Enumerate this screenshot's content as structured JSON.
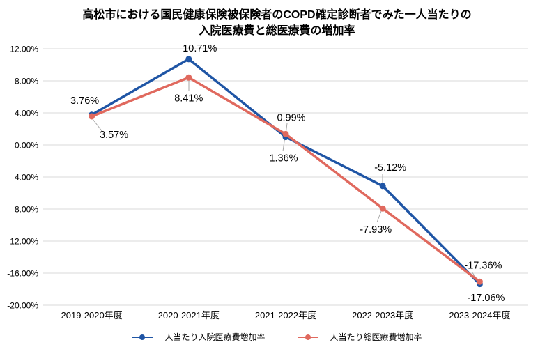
{
  "title": {
    "line1": "高松市における国民健康保険被保険者のCOPD確定診断者でみた一人当たりの",
    "line2": "入院医療費と総医療費の増加率"
  },
  "chart_data": {
    "type": "line",
    "categories": [
      "2019-2020年度",
      "2020-2021年度",
      "2021-2022年度",
      "2022-2023年度",
      "2023-2024年度"
    ],
    "series": [
      {
        "name": "一人当たり入院医療費増加率",
        "color": "#1f55a5",
        "values": [
          3.76,
          10.71,
          0.99,
          -5.12,
          -17.36
        ],
        "labels": [
          "3.76%",
          "10.71%",
          "0.99%",
          "-5.12%",
          "-17.36%"
        ]
      },
      {
        "name": "一人当たり総医療費増加率",
        "color": "#e0695e",
        "values": [
          3.57,
          8.41,
          1.36,
          -7.93,
          -17.06
        ],
        "labels": [
          "3.57%",
          "8.41%",
          "1.36%",
          "-7.93%",
          "-17.06%"
        ]
      }
    ],
    "y_axis": {
      "min": -20,
      "max": 12,
      "step": 4,
      "tick_labels": [
        "12.00%",
        "8.00%",
        "4.00%",
        "0.00%",
        "-4.00%",
        "-8.00%",
        "-12.00%",
        "-16.00%",
        "-20.00%"
      ]
    },
    "xlabel": "",
    "ylabel": "",
    "grid": true,
    "gridline_color": "#d9d9d9",
    "leader_line_color": "#a6a6a6",
    "legend_position": "bottom"
  }
}
